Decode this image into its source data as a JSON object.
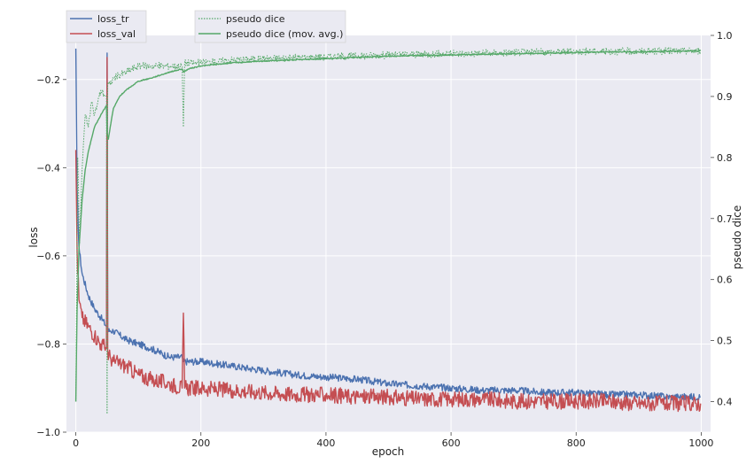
{
  "chart_data": {
    "type": "line",
    "xlabel": "epoch",
    "ylabel_left": "loss",
    "ylabel_right": "pseudo dice",
    "xlim": [
      -15,
      1015
    ],
    "ylim_left": [
      -1.0,
      -0.1
    ],
    "ylim_right": [
      0.35,
      1.0
    ],
    "x_ticks": [
      0,
      200,
      400,
      600,
      800,
      1000
    ],
    "x_tick_labels": [
      "0",
      "200",
      "400",
      "600",
      "800",
      "1000"
    ],
    "y_left_ticks": [
      -1.0,
      -0.8,
      -0.6,
      -0.4,
      -0.2
    ],
    "y_left_tick_labels": [
      "−1.0",
      "−0.8",
      "−0.6",
      "−0.4",
      "−0.2"
    ],
    "y_right_ticks": [
      0.4,
      0.5,
      0.6,
      0.7,
      0.8,
      0.9,
      1.0
    ],
    "y_right_tick_labels": [
      "0.4",
      "0.5",
      "0.6",
      "0.7",
      "0.8",
      "0.9",
      "1.0"
    ],
    "grid": true,
    "legend_left": {
      "placement": "top-left",
      "entries": [
        "loss_tr",
        "loss_val"
      ]
    },
    "legend_right": {
      "placement": "top-center",
      "entries": [
        "pseudo dice",
        "pseudo dice (mov. avg.)"
      ]
    },
    "colors": {
      "loss_tr": "#4c72b0",
      "loss_val": "#c44e52",
      "pseudo_dice": "#55a868",
      "background": "#eaeaf2",
      "grid": "#ffffff"
    },
    "series": [
      {
        "name": "loss_tr",
        "axis": "left",
        "style": "solid",
        "color": "#4c72b0",
        "x": [
          0,
          2,
          5,
          10,
          20,
          30,
          40,
          49,
          50,
          51,
          55,
          60,
          80,
          100,
          120,
          150,
          170,
          172,
          200,
          250,
          300,
          350,
          400,
          450,
          500,
          550,
          600,
          650,
          700,
          750,
          800,
          850,
          900,
          950,
          999
        ],
        "y": [
          -0.13,
          -0.45,
          -0.58,
          -0.64,
          -0.69,
          -0.72,
          -0.74,
          -0.76,
          -0.14,
          -0.77,
          -0.77,
          -0.77,
          -0.79,
          -0.8,
          -0.81,
          -0.83,
          -0.83,
          -0.84,
          -0.84,
          -0.85,
          -0.86,
          -0.87,
          -0.875,
          -0.88,
          -0.89,
          -0.895,
          -0.9,
          -0.905,
          -0.905,
          -0.91,
          -0.91,
          -0.915,
          -0.915,
          -0.92,
          -0.92
        ]
      },
      {
        "name": "loss_val",
        "axis": "left",
        "style": "solid",
        "color": "#c44e52",
        "x": [
          0,
          2,
          5,
          10,
          20,
          30,
          40,
          49,
          50,
          51,
          55,
          60,
          80,
          100,
          120,
          150,
          170,
          172,
          174,
          200,
          250,
          300,
          350,
          400,
          450,
          500,
          550,
          600,
          650,
          700,
          750,
          800,
          850,
          900,
          950,
          999
        ],
        "y": [
          -0.36,
          -0.59,
          -0.7,
          -0.74,
          -0.76,
          -0.78,
          -0.8,
          -0.81,
          -0.15,
          -0.82,
          -0.83,
          -0.84,
          -0.85,
          -0.87,
          -0.88,
          -0.89,
          -0.9,
          -0.73,
          -0.9,
          -0.9,
          -0.905,
          -0.91,
          -0.915,
          -0.915,
          -0.92,
          -0.92,
          -0.925,
          -0.925,
          -0.925,
          -0.93,
          -0.93,
          -0.93,
          -0.93,
          -0.935,
          -0.935,
          -0.935
        ]
      },
      {
        "name": "pseudo dice",
        "axis": "right",
        "style": "dotted",
        "color": "#55a868",
        "x": [
          0,
          3,
          6,
          10,
          15,
          20,
          25,
          30,
          40,
          49,
          50,
          51,
          55,
          60,
          80,
          100,
          120,
          150,
          170,
          172,
          174,
          200,
          250,
          300,
          400,
          500,
          600,
          700,
          800,
          900,
          999
        ],
        "y": [
          0.4,
          0.8,
          0.66,
          0.78,
          0.87,
          0.85,
          0.89,
          0.87,
          0.91,
          0.9,
          0.38,
          0.92,
          0.92,
          0.93,
          0.94,
          0.95,
          0.95,
          0.95,
          0.95,
          0.85,
          0.955,
          0.955,
          0.96,
          0.962,
          0.965,
          0.968,
          0.97,
          0.972,
          0.974,
          0.974,
          0.975
        ]
      },
      {
        "name": "pseudo dice (mov. avg.)",
        "axis": "right",
        "style": "solid",
        "color": "#55a868",
        "x": [
          0,
          2,
          5,
          10,
          15,
          20,
          30,
          40,
          49,
          50,
          52,
          55,
          60,
          70,
          80,
          100,
          120,
          150,
          170,
          172,
          180,
          200,
          250,
          300,
          350,
          400,
          450,
          500,
          550,
          600,
          650,
          700,
          750,
          800,
          850,
          900,
          950,
          999
        ],
        "y": [
          0.4,
          0.55,
          0.65,
          0.73,
          0.78,
          0.81,
          0.85,
          0.87,
          0.885,
          0.84,
          0.83,
          0.85,
          0.88,
          0.9,
          0.91,
          0.925,
          0.93,
          0.94,
          0.945,
          0.94,
          0.945,
          0.95,
          0.955,
          0.958,
          0.96,
          0.962,
          0.964,
          0.966,
          0.967,
          0.968,
          0.969,
          0.97,
          0.971,
          0.972,
          0.973,
          0.973,
          0.974,
          0.975
        ]
      }
    ]
  }
}
